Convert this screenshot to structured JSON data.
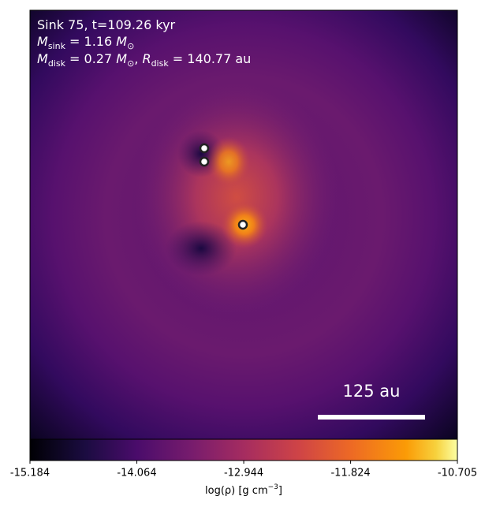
{
  "chart_data": {
    "type": "density-map",
    "annotation_lines": [
      [
        "Sink 75, t=109.26 kyr"
      ],
      [
        "M",
        "sink",
        " = 1.16 ",
        "M",
        "⊙"
      ],
      [
        "M",
        "disk",
        " = 0.27 ",
        "M",
        "⊙",
        ", ",
        "R",
        "disk",
        " = 140.77 au"
      ]
    ],
    "scale_bar_label": "125 au",
    "colorbar": {
      "label": [
        "log(ρ) [g cm",
        "−3",
        "]"
      ],
      "xlim": [
        -15.184,
        -10.705
      ],
      "xticks": [
        -15.184,
        -14.064,
        -12.944,
        -11.824,
        -10.705
      ],
      "colormap": "inferno"
    }
  }
}
